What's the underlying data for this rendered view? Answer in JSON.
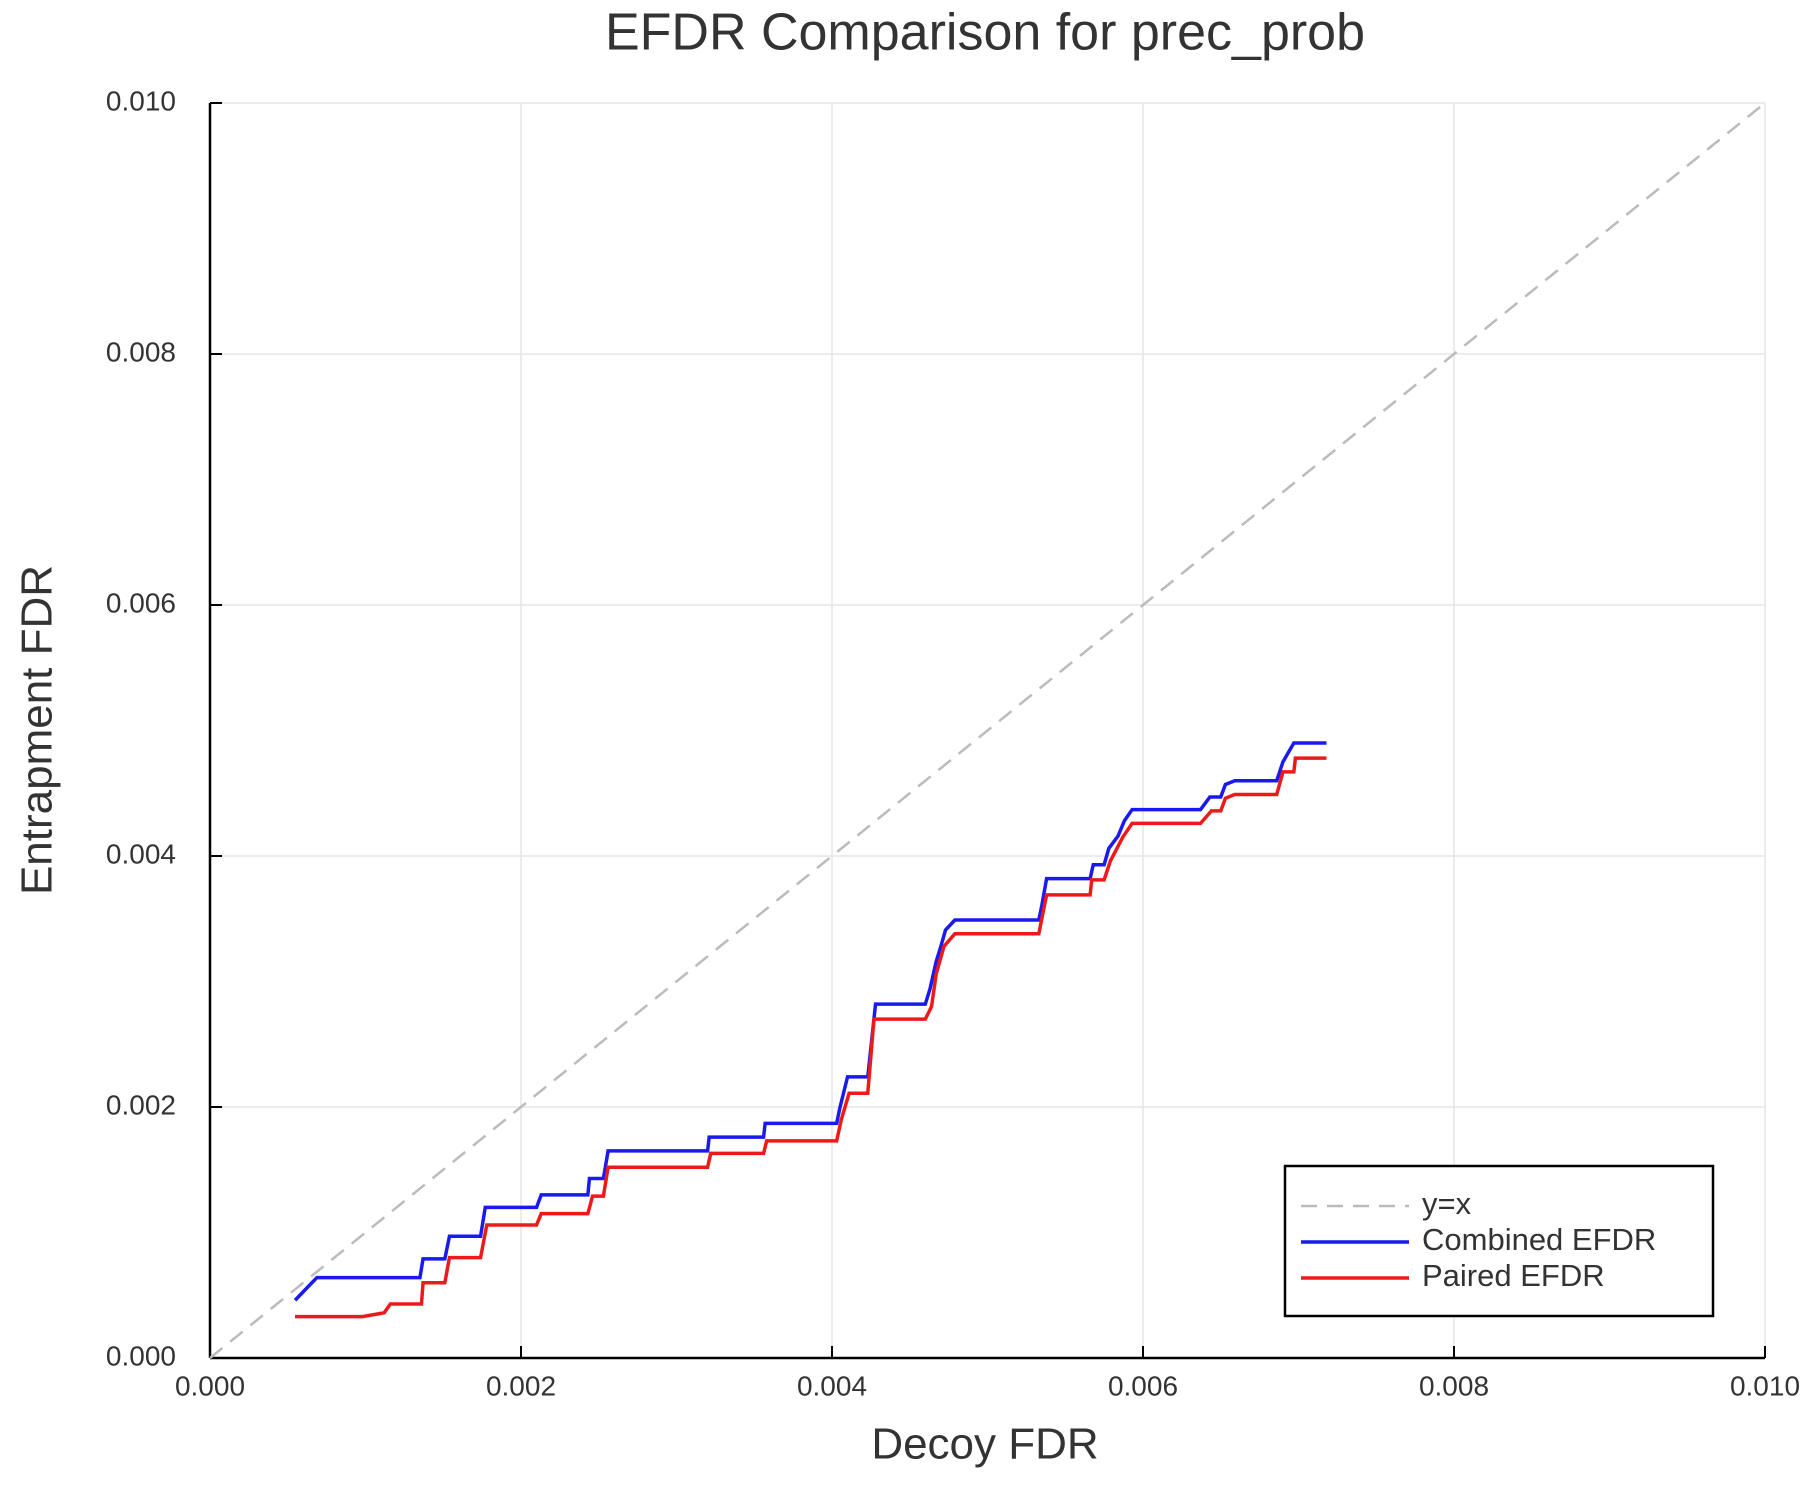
{
  "chart_data": {
    "type": "line",
    "title": "EFDR Comparison for prec_prob",
    "x_label": "Decoy FDR",
    "y_label": "Entrapment FDR",
    "xlim": [
      0,
      0.01
    ],
    "ylim": [
      0,
      0.01
    ],
    "xticks": [
      {
        "value": 0,
        "label": "0.000"
      },
      {
        "value": 0.002,
        "label": "0.002"
      },
      {
        "value": 0.004,
        "label": "0.004"
      },
      {
        "value": 0.006,
        "label": "0.006"
      },
      {
        "value": 0.008,
        "label": "0.008"
      },
      {
        "value": 0.01,
        "label": "0.010"
      }
    ],
    "yticks": [
      {
        "value": 0,
        "label": "0.000"
      },
      {
        "value": 0.002,
        "label": "0.002"
      },
      {
        "value": 0.004,
        "label": "0.004"
      },
      {
        "value": 0.006,
        "label": "0.006"
      },
      {
        "value": 0.008,
        "label": "0.008"
      },
      {
        "value": 0.01,
        "label": "0.010"
      }
    ],
    "grid": true,
    "legend": "bottom right",
    "series": [
      {
        "name": "y=x",
        "color": "#bbbbbb",
        "dash": true,
        "x": [
          0,
          0.01
        ],
        "values": [
          0,
          0.01
        ]
      },
      {
        "name": "Combined EFDR",
        "color": "#1a1aee",
        "dash": false,
        "x": [
          0.000547,
          0.000687,
          0.00135,
          0.00137,
          0.00151,
          0.00154,
          0.00174,
          0.00177,
          0.0021,
          0.00213,
          0.00243,
          0.00244,
          0.00253,
          0.00256,
          0.0032,
          0.00321,
          0.00356,
          0.00357,
          0.00403,
          0.00405,
          0.0041,
          0.00423,
          0.00428,
          0.0046,
          0.00463,
          0.00467,
          0.0047,
          0.00473,
          0.00479,
          0.00533,
          0.00535,
          0.00538,
          0.00566,
          0.00568,
          0.00575,
          0.00578,
          0.00584,
          0.00588,
          0.00593,
          0.00637,
          0.00643,
          0.0065,
          0.00653,
          0.00659,
          0.00686,
          0.0069,
          0.00697,
          0.00718
        ],
        "values": [
          0.00046,
          0.00064,
          0.00064,
          0.00079,
          0.00079,
          0.00097,
          0.00097,
          0.0012,
          0.0012,
          0.0013,
          0.0013,
          0.00143,
          0.00143,
          0.00165,
          0.00165,
          0.00176,
          0.00176,
          0.00187,
          0.00187,
          0.00199,
          0.00224,
          0.00224,
          0.00282,
          0.00282,
          0.00294,
          0.00316,
          0.00328,
          0.00341,
          0.00349,
          0.00349,
          0.00361,
          0.00382,
          0.00382,
          0.00393,
          0.00393,
          0.00406,
          0.00416,
          0.00428,
          0.00437,
          0.00437,
          0.00447,
          0.00447,
          0.00457,
          0.0046,
          0.0046,
          0.00475,
          0.0049,
          0.0049
        ]
      },
      {
        "name": "Paired EFDR",
        "color": "#ee1a1a",
        "dash": false,
        "x": [
          0.000547,
          0.00098,
          0.00112,
          0.00116,
          0.00136,
          0.00137,
          0.00151,
          0.00154,
          0.00174,
          0.00178,
          0.0021,
          0.00213,
          0.00243,
          0.00246,
          0.00253,
          0.00256,
          0.0032,
          0.00322,
          0.00356,
          0.00358,
          0.00403,
          0.00406,
          0.00411,
          0.00423,
          0.00427,
          0.0046,
          0.00464,
          0.00467,
          0.00472,
          0.00479,
          0.00533,
          0.00538,
          0.00566,
          0.00567,
          0.00575,
          0.00579,
          0.00587,
          0.00593,
          0.00637,
          0.00644,
          0.0065,
          0.00653,
          0.00659,
          0.00686,
          0.0069,
          0.00697,
          0.00698,
          0.00718
        ],
        "values": [
          0.00033,
          0.00033,
          0.00036,
          0.00043,
          0.00043,
          0.0006,
          0.0006,
          0.0008,
          0.0008,
          0.00106,
          0.00106,
          0.00115,
          0.00115,
          0.00129,
          0.00129,
          0.00152,
          0.00152,
          0.00163,
          0.00163,
          0.00173,
          0.00173,
          0.0019,
          0.00211,
          0.00211,
          0.0027,
          0.0027,
          0.0028,
          0.00306,
          0.00328,
          0.00338,
          0.00338,
          0.00369,
          0.00369,
          0.00381,
          0.00381,
          0.00396,
          0.00415,
          0.00426,
          0.00426,
          0.00436,
          0.00436,
          0.00446,
          0.00449,
          0.00449,
          0.00467,
          0.00467,
          0.00478,
          0.00478
        ]
      }
    ]
  }
}
